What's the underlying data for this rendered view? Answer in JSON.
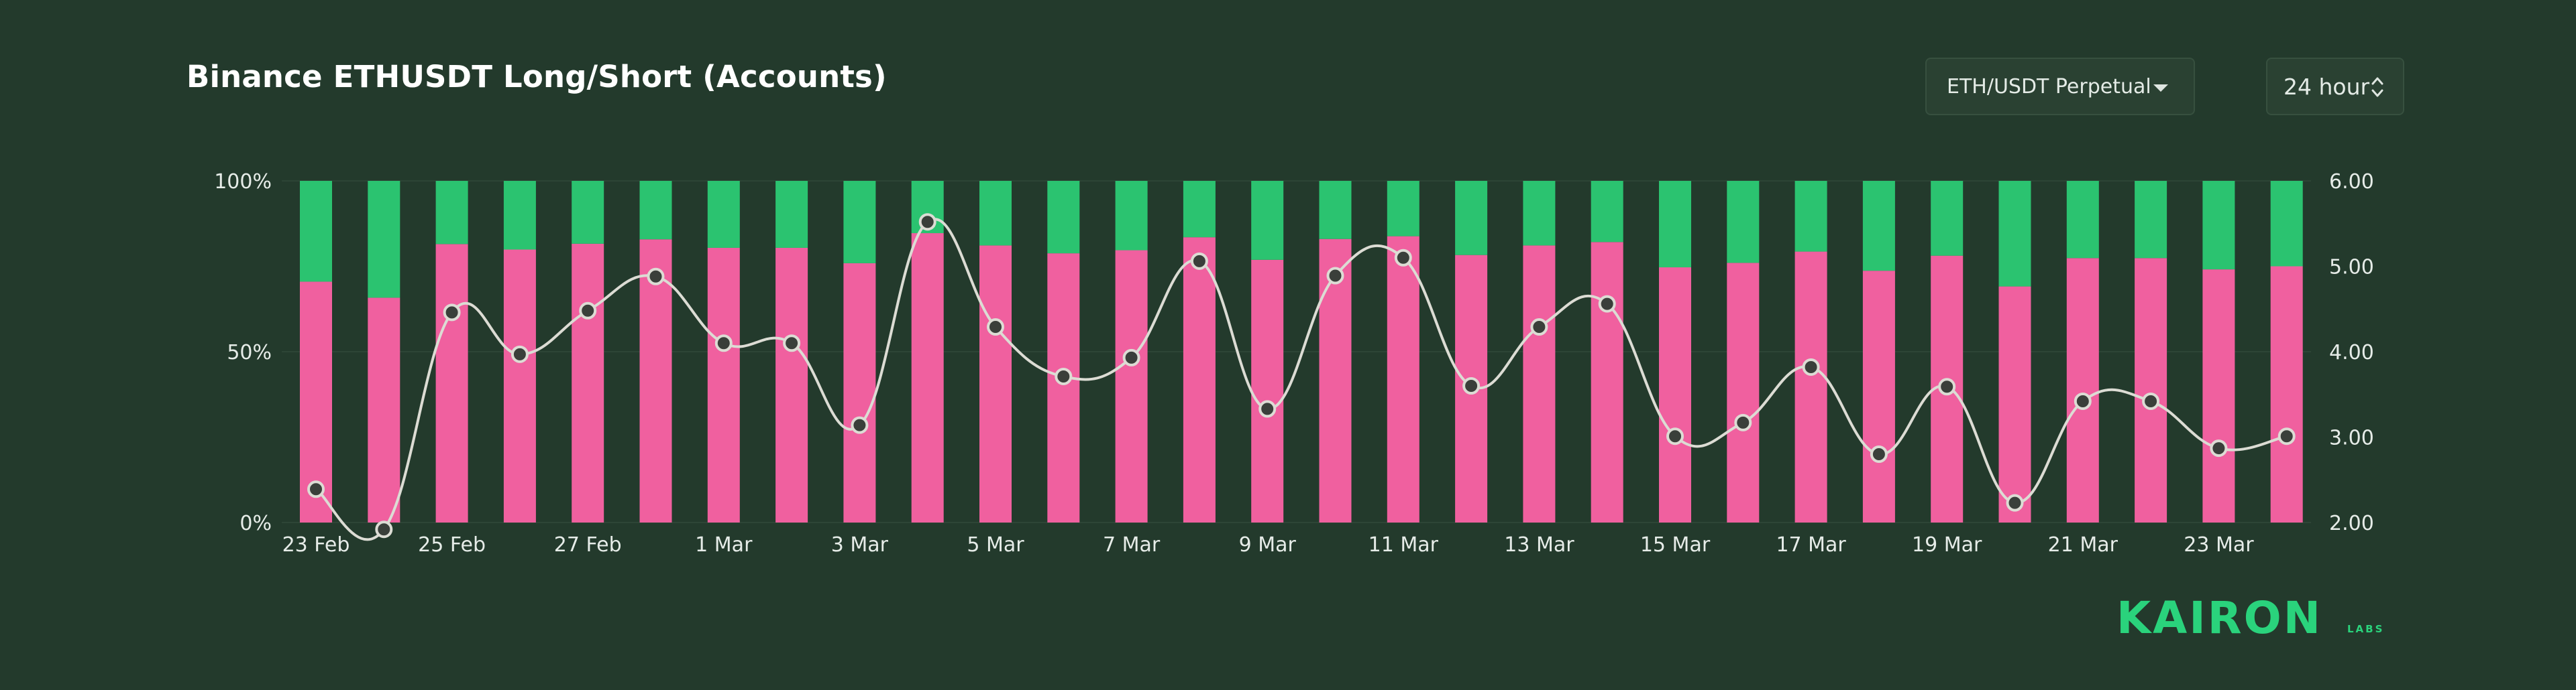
{
  "header": {
    "title": "Binance ETHUSDT Long/Short (Accounts)"
  },
  "controls": {
    "symbol": "ETH/USDT Perpetual",
    "interval": "24 hour"
  },
  "brand": {
    "logo_text": "KAIRON",
    "logo_sub": "LABS"
  },
  "colors": {
    "background": "#233a2c",
    "long": "#f0609f",
    "short": "#2bc370",
    "ratio_line": "#dcdcd4",
    "brand": "#2ad37c"
  },
  "chart_data": {
    "type": "bar",
    "stacked": true,
    "categories": [
      "23 Feb",
      "24 Feb",
      "25 Feb",
      "26 Feb",
      "27 Feb",
      "28 Feb",
      "1 Mar",
      "2 Mar",
      "3 Mar",
      "4 Mar",
      "5 Mar",
      "6 Mar",
      "7 Mar",
      "8 Mar",
      "9 Mar",
      "10 Mar",
      "11 Mar",
      "12 Mar",
      "13 Mar",
      "14 Mar",
      "15 Mar",
      "16 Mar",
      "17 Mar",
      "18 Mar",
      "19 Mar",
      "20 Mar",
      "21 Mar",
      "22 Mar",
      "23 Mar",
      "24 Mar"
    ],
    "x_tick_labels": [
      "23 Feb",
      "25 Feb",
      "27 Feb",
      "1 Mar",
      "3 Mar",
      "5 Mar",
      "7 Mar",
      "9 Mar",
      "11 Mar",
      "13 Mar",
      "15 Mar",
      "17 Mar",
      "19 Mar",
      "21 Mar",
      "23 Mar"
    ],
    "series": [
      {
        "axis": "left",
        "values": [
          70.5,
          65.8,
          81.5,
          79.9,
          81.6,
          82.9,
          80.4,
          80.4,
          75.9,
          84.7,
          81.1,
          78.8,
          79.7,
          83.5,
          76.9,
          83.0,
          83.8,
          78.3,
          81.1,
          82.1,
          74.7,
          76.0,
          79.3,
          73.7,
          78.1,
          69.1,
          77.4,
          77.4,
          74.1,
          75.0
        ]
      },
      {
        "axis": "left",
        "values": [
          29.5,
          34.2,
          18.5,
          20.1,
          18.4,
          17.1,
          19.6,
          19.6,
          24.1,
          15.3,
          18.9,
          21.2,
          20.3,
          16.5,
          23.1,
          17.0,
          16.2,
          21.7,
          18.9,
          17.9,
          25.3,
          24.0,
          20.7,
          26.3,
          21.9,
          30.9,
          22.6,
          22.6,
          25.9,
          25.0
        ]
      },
      {
        "axis": "right",
        "type": "line",
        "values": [
          2.39,
          1.92,
          4.46,
          3.97,
          4.48,
          4.88,
          4.1,
          4.1,
          3.14,
          5.52,
          4.29,
          3.71,
          3.93,
          5.06,
          3.33,
          4.89,
          5.1,
          3.6,
          4.29,
          4.56,
          3.01,
          3.17,
          3.82,
          2.8,
          3.59,
          2.23,
          3.42,
          3.42,
          2.87,
          3.01
        ]
      }
    ],
    "y_left": {
      "ticks": [
        "0%",
        "50%",
        "100%"
      ],
      "min": 0,
      "max": 100
    },
    "y_right": {
      "ticks": [
        "2.00",
        "3.00",
        "4.00",
        "5.00",
        "6.00"
      ],
      "min": 2,
      "max": 6
    },
    "grid": true,
    "legend": "none"
  }
}
